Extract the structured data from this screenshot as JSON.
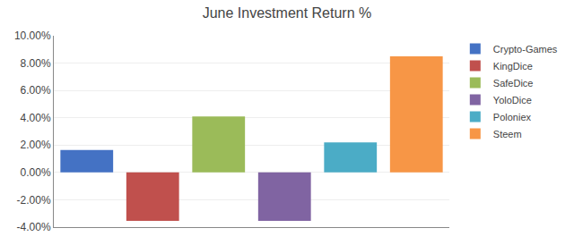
{
  "chart_data": {
    "type": "bar",
    "title": "June Investment Return %",
    "categories": [
      "Crypto-Games",
      "KingDice",
      "SafeDice",
      "YoloDice",
      "Poloniex",
      "Steem"
    ],
    "values": [
      1.65,
      -3.55,
      4.1,
      -3.55,
      2.2,
      8.5
    ],
    "colors": [
      "#4472C4",
      "#C0504D",
      "#9BBB59",
      "#8064A2",
      "#4BACC6",
      "#F79646"
    ],
    "ylim": [
      -4.0,
      10.0
    ],
    "yticks": [
      {
        "value": -4.0,
        "label": "-4.00%"
      },
      {
        "value": -2.0,
        "label": "-2.00%"
      },
      {
        "value": 0.0,
        "label": "0.00%"
      },
      {
        "value": 2.0,
        "label": "2.00%"
      },
      {
        "value": 4.0,
        "label": "4.00%"
      },
      {
        "value": 6.0,
        "label": "6.00%"
      },
      {
        "value": 8.0,
        "label": "8.00%"
      },
      {
        "value": 10.0,
        "label": "10.00%"
      }
    ],
    "grid": true,
    "legend": "right",
    "tick_labels": "y"
  }
}
